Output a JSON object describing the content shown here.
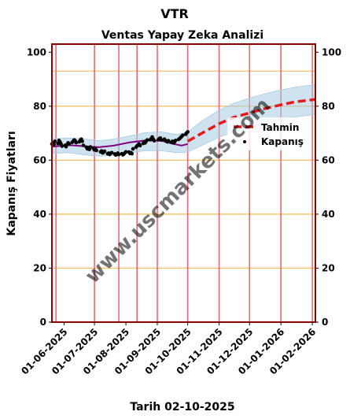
{
  "chart_data": {
    "type": "line",
    "suptitle": "VTR",
    "title": "Ventas Yapay Zeka Analizi",
    "xlabel": "Tarih 02-10-2025",
    "ylabel": "Kapanış Fiyatları",
    "ylim": [
      0,
      103
    ],
    "yticks": [
      0,
      20,
      40,
      60,
      80,
      100
    ],
    "xlim": [
      "2025-05-20",
      "2026-02-04"
    ],
    "xticks": [
      "01-06-2025",
      "01-07-2025",
      "01-08-2025",
      "01-09-2025",
      "01-10-2025",
      "01-11-2025",
      "01-12-2025",
      "01-01-2026",
      "01-02-2026"
    ],
    "vlines": [
      "2025-05-24",
      "2025-07-01",
      "2025-07-25",
      "2025-08-12",
      "2025-09-01",
      "2025-10-01",
      "2025-11-01",
      "2025-12-01",
      "2026-01-01",
      "2026-02-01"
    ],
    "hlines": [
      20,
      40,
      60,
      80,
      93
    ],
    "legend": {
      "position": "center-right",
      "entries": [
        "Tahmin",
        "Kapanış"
      ]
    },
    "watermark": "www.uscmarkets.com",
    "colors": {
      "forecast": "#e8191b",
      "close": "#000000",
      "smooth": "#800080",
      "band": "#a6cbe3",
      "frame": "#8b0000",
      "hgrid": "#f5c267",
      "vgrid": "#e86a70"
    },
    "series": [
      {
        "name": "Kapanış",
        "style": "points",
        "x": [
          "2025-05-20",
          "2025-05-21",
          "2025-05-22",
          "2025-05-23",
          "2025-05-26",
          "2025-05-27",
          "2025-05-28",
          "2025-05-29",
          "2025-05-30",
          "2025-06-02",
          "2025-06-03",
          "2025-06-04",
          "2025-06-05",
          "2025-06-06",
          "2025-06-09",
          "2025-06-10",
          "2025-06-11",
          "2025-06-12",
          "2025-06-13",
          "2025-06-16",
          "2025-06-17",
          "2025-06-18",
          "2025-06-19",
          "2025-06-20",
          "2025-06-23",
          "2025-06-24",
          "2025-06-25",
          "2025-06-26",
          "2025-06-27",
          "2025-06-30",
          "2025-07-01",
          "2025-07-02",
          "2025-07-03",
          "2025-07-07",
          "2025-07-08",
          "2025-07-09",
          "2025-07-10",
          "2025-07-11",
          "2025-07-14",
          "2025-07-15",
          "2025-07-16",
          "2025-07-17",
          "2025-07-18",
          "2025-07-21",
          "2025-07-22",
          "2025-07-23",
          "2025-07-24",
          "2025-07-25",
          "2025-07-28",
          "2025-07-29",
          "2025-07-30",
          "2025-07-31",
          "2025-08-01",
          "2025-08-04",
          "2025-08-05",
          "2025-08-06",
          "2025-08-07",
          "2025-08-08",
          "2025-08-11",
          "2025-08-12",
          "2025-08-13",
          "2025-08-14",
          "2025-08-15",
          "2025-08-18",
          "2025-08-19",
          "2025-08-20",
          "2025-08-21",
          "2025-08-22",
          "2025-08-25",
          "2025-08-26",
          "2025-08-27",
          "2025-08-28",
          "2025-08-29",
          "2025-09-02",
          "2025-09-03",
          "2025-09-04",
          "2025-09-05",
          "2025-09-08",
          "2025-09-09",
          "2025-09-10",
          "2025-09-11",
          "2025-09-12",
          "2025-09-15",
          "2025-09-16",
          "2025-09-17",
          "2025-09-18",
          "2025-09-19",
          "2025-09-22",
          "2025-09-23",
          "2025-09-24",
          "2025-09-25",
          "2025-09-26",
          "2025-09-29",
          "2025-09-30",
          "2025-10-01"
        ],
        "values": [
          66.0,
          66.5,
          65.8,
          67.0,
          66.2,
          67.3,
          66.8,
          66.0,
          65.2,
          65.5,
          65.0,
          65.8,
          66.4,
          66.0,
          66.6,
          67.0,
          67.5,
          67.2,
          66.5,
          66.8,
          67.4,
          67.8,
          67.0,
          65.5,
          64.8,
          64.2,
          64.6,
          64.0,
          64.9,
          64.3,
          63.8,
          64.2,
          63.6,
          63.1,
          63.4,
          62.7,
          62.9,
          63.3,
          62.4,
          62.6,
          62.1,
          62.5,
          62.8,
          62.3,
          61.9,
          62.2,
          62.6,
          62.1,
          62.4,
          62.0,
          62.3,
          62.7,
          63.1,
          63.0,
          62.5,
          62.8,
          62.4,
          64.2,
          64.8,
          65.3,
          65.6,
          66.0,
          65.4,
          66.2,
          66.7,
          66.4,
          67.0,
          67.5,
          67.6,
          68.0,
          68.6,
          67.8,
          67.2,
          67.6,
          68.0,
          68.2,
          67.5,
          67.8,
          67.3,
          67.0,
          66.8,
          67.2,
          66.6,
          67.0,
          66.4,
          66.8,
          67.3,
          67.7,
          68.0,
          68.4,
          68.8,
          69.2,
          69.6,
          70.1,
          70.5
        ]
      },
      {
        "name": "smooth",
        "style": "line",
        "x": [
          "2025-05-20",
          "2025-06-05",
          "2025-06-20",
          "2025-07-05",
          "2025-07-20",
          "2025-08-05",
          "2025-08-20",
          "2025-09-05",
          "2025-09-15",
          "2025-09-25",
          "2025-10-01"
        ],
        "values": [
          65.0,
          65.6,
          65.2,
          64.8,
          65.4,
          66.6,
          67.3,
          67.2,
          66.2,
          65.4,
          66.0
        ]
      },
      {
        "name": "Tahmin",
        "style": "dashed",
        "x": [
          "2025-10-01",
          "2025-10-15",
          "2025-11-01",
          "2025-11-15",
          "2025-12-01",
          "2025-12-15",
          "2026-01-01",
          "2026-01-15",
          "2026-02-04"
        ],
        "values": [
          67.0,
          70.0,
          73.5,
          75.8,
          77.5,
          79.0,
          80.5,
          81.6,
          82.5
        ]
      }
    ],
    "band": {
      "x": [
        "2025-05-20",
        "2025-06-05",
        "2025-06-20",
        "2025-07-05",
        "2025-07-20",
        "2025-08-05",
        "2025-08-20",
        "2025-09-05",
        "2025-09-20",
        "2025-10-01",
        "2025-10-15",
        "2025-11-01",
        "2025-11-15",
        "2025-12-01",
        "2025-12-15",
        "2026-01-01",
        "2026-01-15",
        "2026-02-04"
      ],
      "lower": [
        62.5,
        62.8,
        62.0,
        61.5,
        61.8,
        62.8,
        63.5,
        63.5,
        62.8,
        63.0,
        65.5,
        68.5,
        70.5,
        72.3,
        73.5,
        75.0,
        76.0,
        77.0
      ],
      "upper": [
        68.0,
        68.2,
        68.0,
        67.2,
        67.8,
        69.0,
        70.2,
        70.5,
        69.5,
        70.5,
        74.5,
        78.5,
        81.0,
        83.0,
        84.5,
        86.0,
        87.0,
        88.0
      ]
    }
  }
}
